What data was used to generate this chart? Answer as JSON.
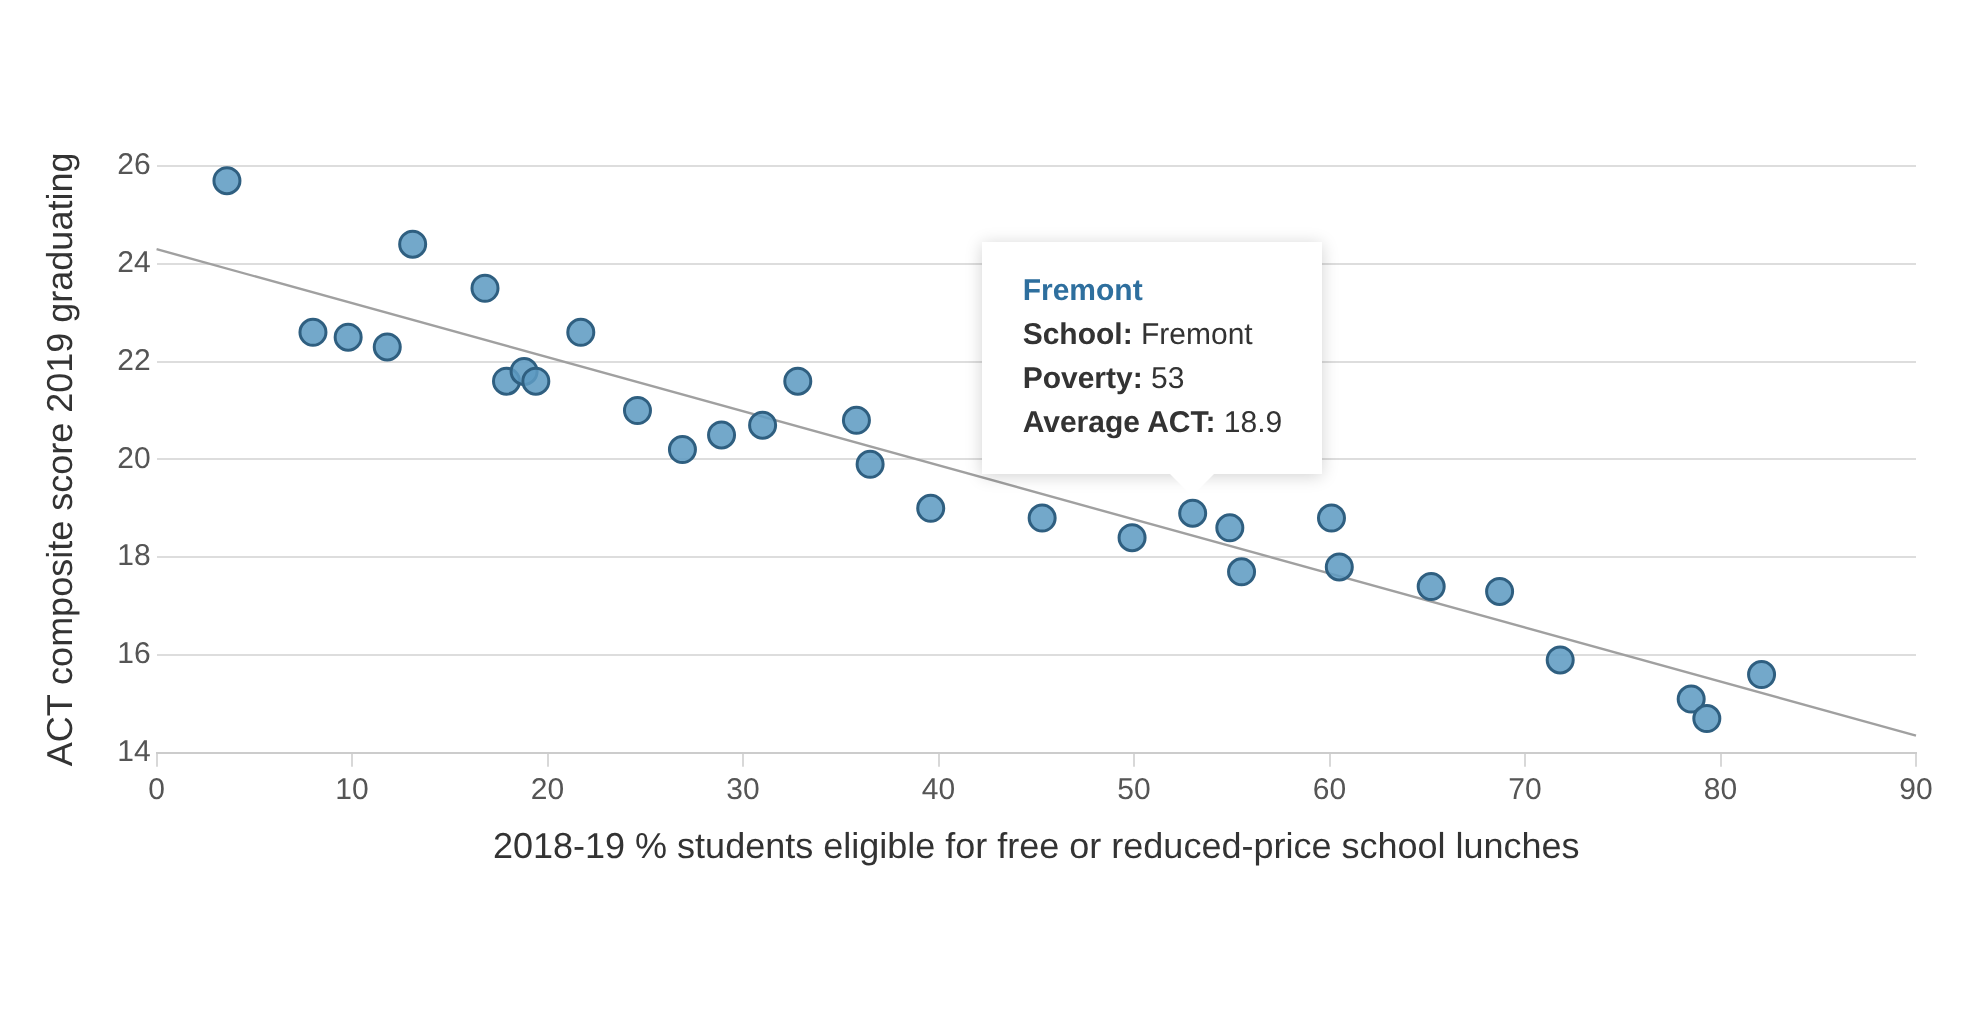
{
  "chart_data": {
    "type": "scatter",
    "xlabel": "2018-19 % students eligible for free or reduced-price school lunches",
    "ylabel": "ACT composite score 2019 graduating",
    "xlim": [
      0,
      90
    ],
    "xticks": [
      0,
      10,
      20,
      30,
      40,
      50,
      60,
      70,
      80,
      90
    ],
    "ylim": [
      14,
      26
    ],
    "yticks": [
      14,
      16,
      18,
      20,
      22,
      24,
      26
    ],
    "grid": "y",
    "legend": false,
    "series": [
      {
        "color": "#5e9bc2",
        "marker": "circle",
        "x": [
          3.6,
          8.0,
          9.8,
          11.8,
          13.1,
          16.8,
          17.9,
          18.8,
          19.4,
          21.7,
          24.6,
          26.9,
          28.9,
          31.0,
          32.8,
          35.8,
          36.5,
          39.6,
          45.3,
          49.9,
          53,
          54.9,
          55.5,
          60.1,
          60.5,
          65.2,
          68.7,
          71.8,
          78.5,
          79.3,
          82.1
        ],
        "values": [
          25.7,
          22.6,
          22.5,
          22.3,
          24.4,
          23.5,
          21.6,
          21.8,
          21.6,
          22.6,
          21.0,
          20.2,
          20.5,
          20.7,
          21.6,
          20.8,
          19.9,
          19.0,
          18.8,
          18.4,
          18.9,
          18.6,
          17.7,
          18.8,
          17.8,
          17.4,
          17.3,
          15.9,
          15.1,
          14.7,
          15.6
        ]
      },
      {
        "type": "line",
        "color": "#a0a0a0",
        "marker": "none",
        "x": [
          0,
          90
        ],
        "values": [
          24.3,
          14.35
        ]
      }
    ],
    "annotations": [
      {
        "text": "Fremont\nSchool: Fremont\nPoverty: 53\nAverage ACT: 18.9",
        "x": 53,
        "y": 18.9
      }
    ]
  }
}
